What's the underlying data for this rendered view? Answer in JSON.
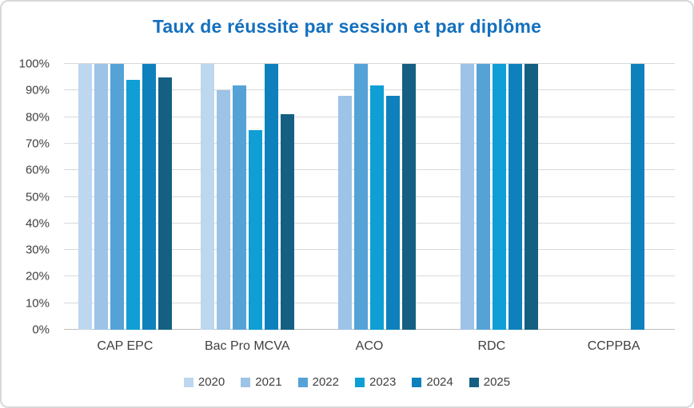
{
  "chart_data": {
    "type": "bar",
    "title": "Taux de réussite par session et par diplôme",
    "title_color": "#1470be",
    "categories": [
      "CAP EPC",
      "Bac Pro MCVA",
      "ACO",
      "RDC",
      "CCPPBA"
    ],
    "series": [
      {
        "name": "2020",
        "color": "#bdd7ee",
        "values": [
          100,
          100,
          null,
          null,
          null
        ]
      },
      {
        "name": "2021",
        "color": "#9dc3e6",
        "values": [
          100,
          90,
          88,
          100,
          null
        ]
      },
      {
        "name": "2022",
        "color": "#55a2d7",
        "values": [
          100,
          92,
          100,
          100,
          null
        ]
      },
      {
        "name": "2023",
        "color": "#0f9ed5",
        "values": [
          94,
          75,
          92,
          100,
          null
        ]
      },
      {
        "name": "2024",
        "color": "#0e81bc",
        "values": [
          100,
          100,
          88,
          100,
          100
        ]
      },
      {
        "name": "2025",
        "color": "#156082",
        "values": [
          95,
          81,
          100,
          100,
          null
        ]
      }
    ],
    "y_axis": {
      "min": 0,
      "max": 100,
      "step": 10,
      "tick_labels": [
        "0%",
        "10%",
        "20%",
        "30%",
        "40%",
        "50%",
        "60%",
        "70%",
        "80%",
        "90%",
        "100%"
      ]
    },
    "grid": "horizontal",
    "legend_position": "bottom"
  }
}
